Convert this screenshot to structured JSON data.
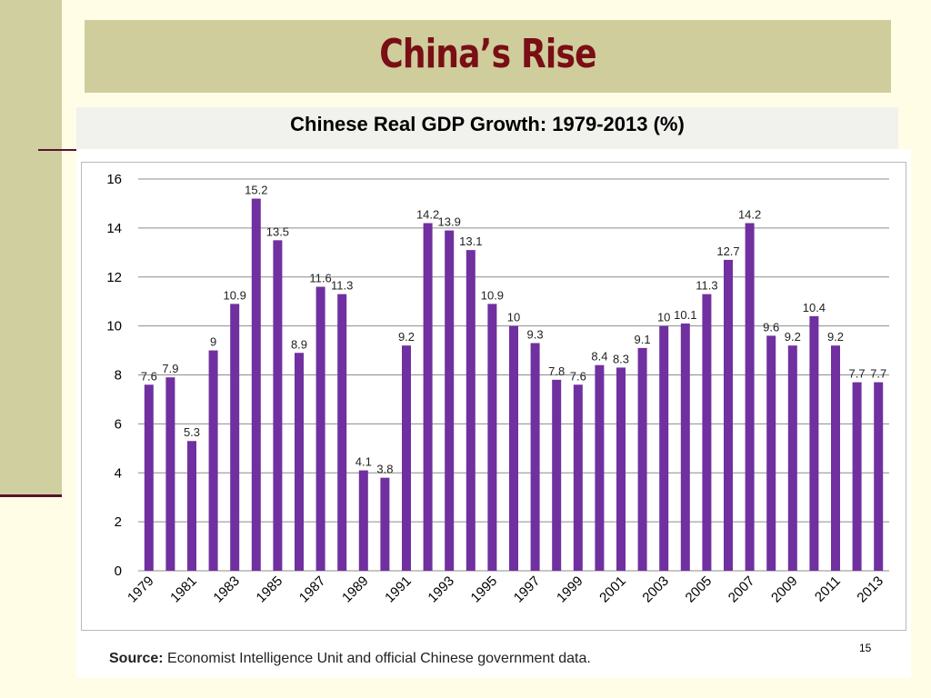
{
  "slide": {
    "title": "China’s Rise",
    "page_number": "15",
    "source_label": "Source:",
    "source_text": "Economist Intelligence Unit and official Chinese government data."
  },
  "colors": {
    "bar": "#7030a0",
    "title": "#7a0e16",
    "title_bar": "#cfcd9b",
    "background": "#fffde6"
  },
  "chart_data": {
    "type": "bar",
    "title": "Chinese Real GDP Growth: 1979-2013 (%)",
    "xlabel": "",
    "ylabel": "",
    "ylim": [
      0,
      16
    ],
    "yticks": [
      0,
      2,
      4,
      6,
      8,
      10,
      12,
      14,
      16
    ],
    "grid": true,
    "categories": [
      "1979",
      "1980",
      "1981",
      "1982",
      "1983",
      "1984",
      "1985",
      "1986",
      "1987",
      "1988",
      "1989",
      "1990",
      "1991",
      "1992",
      "1993",
      "1994",
      "1995",
      "1996",
      "1997",
      "1998",
      "1999",
      "2000",
      "2001",
      "2002",
      "2003",
      "2004",
      "2005",
      "2006",
      "2007",
      "2008",
      "2009",
      "2010",
      "2011",
      "2012",
      "2013"
    ],
    "values": [
      7.6,
      7.9,
      5.3,
      9,
      10.9,
      15.2,
      13.5,
      8.9,
      11.6,
      11.3,
      4.1,
      3.8,
      9.2,
      14.2,
      13.9,
      13.1,
      10.9,
      10,
      9.3,
      7.8,
      7.6,
      8.4,
      8.3,
      9.1,
      10,
      10.1,
      11.3,
      12.7,
      14.2,
      9.6,
      9.2,
      10.4,
      9.2,
      7.7,
      7.7
    ],
    "tick_labels": [
      "1979",
      "1981",
      "1983",
      "1985",
      "1987",
      "1989",
      "1991",
      "1993",
      "1995",
      "1997",
      "1999",
      "2001",
      "2003",
      "2005",
      "2007",
      "2009",
      "2011",
      "2013"
    ]
  }
}
